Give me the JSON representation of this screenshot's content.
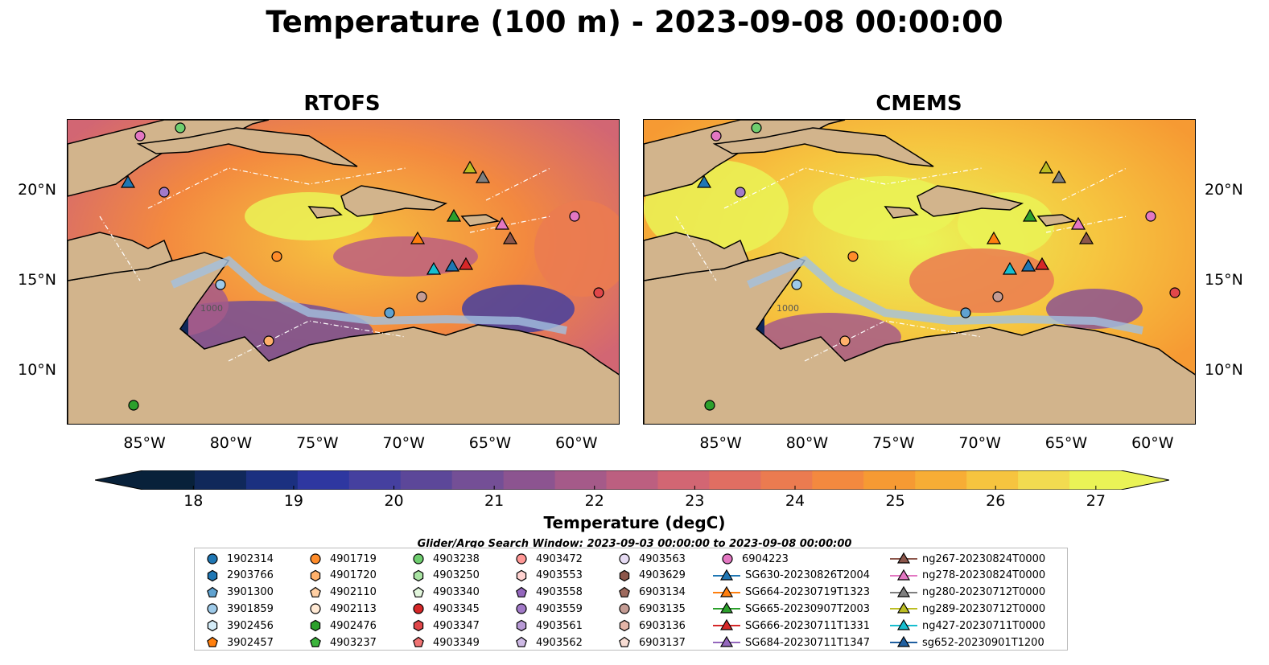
{
  "title": "Temperature (100 m) - 2023-09-08 00:00:00",
  "chart_data": [
    {
      "type": "heatmap",
      "title": "RTOFS",
      "xlim": [
        -89.5,
        -57.5
      ],
      "ylim": [
        7,
        24
      ],
      "xticks": [
        "85°W",
        "80°W",
        "75°W",
        "70°W",
        "65°W",
        "60°W"
      ],
      "yticks": [
        "10°N",
        "15°N",
        "20°N"
      ],
      "xtick_values": [
        -85,
        -80,
        -75,
        -70,
        -65,
        -60
      ],
      "ytick_values": [
        10,
        15,
        20
      ],
      "contour_labels": [
        "1000"
      ],
      "grid": false
    },
    {
      "type": "heatmap",
      "title": "CMEMS",
      "xlim": [
        -89.5,
        -57.5
      ],
      "ylim": [
        7,
        24
      ],
      "xticks": [
        "85°W",
        "80°W",
        "75°W",
        "70°W",
        "65°W",
        "60°W"
      ],
      "yticks": [
        "10°N",
        "15°N",
        "20°N"
      ],
      "xtick_values": [
        -85,
        -80,
        -75,
        -70,
        -65,
        -60
      ],
      "ytick_values": [
        10,
        15,
        20
      ],
      "contour_labels": [
        "1000"
      ],
      "grid": false
    }
  ],
  "colorbar": {
    "label": "Temperature (degC)",
    "min": 17.5,
    "max": 27.25,
    "ticks": [
      "18",
      "19",
      "20",
      "21",
      "22",
      "23",
      "24",
      "25",
      "26",
      "27"
    ],
    "tick_values": [
      18,
      19,
      20,
      21,
      22,
      23,
      24,
      25,
      26,
      27
    ],
    "colors": [
      "#08213a",
      "#10285a",
      "#1b3080",
      "#2e37a0",
      "#45409f",
      "#5c4799",
      "#744f96",
      "#8c5490",
      "#a55a89",
      "#bc5f80",
      "#d26673",
      "#e06e62",
      "#eb7b50",
      "#f3893f",
      "#f69a33",
      "#f7ad35",
      "#f6c43f",
      "#f2db50",
      "#eaf356"
    ]
  },
  "search_window": "Glider/Argo Search Window: 2023-09-03 00:00:00 to 2023-09-08 00:00:00",
  "legend": [
    {
      "label": "1902314",
      "marker": "circle",
      "color": "#1f77b4"
    },
    {
      "label": "2903766",
      "marker": "hexagon",
      "color": "#1f77b4"
    },
    {
      "label": "3901300",
      "marker": "pentagon",
      "color": "#5fa2d0"
    },
    {
      "label": "3901859",
      "marker": "circle",
      "color": "#9ecae9"
    },
    {
      "label": "3902456",
      "marker": "hexagon",
      "color": "#d4ecf8"
    },
    {
      "label": "3902457",
      "marker": "pentagon",
      "color": "#ff7f0e"
    },
    {
      "label": "4901719",
      "marker": "circle",
      "color": "#ff8c2a"
    },
    {
      "label": "4901720",
      "marker": "hexagon",
      "color": "#ffb16b"
    },
    {
      "label": "4902110",
      "marker": "pentagon",
      "color": "#ffcfa3"
    },
    {
      "label": "4902113",
      "marker": "circle",
      "color": "#ffe9d4"
    },
    {
      "label": "4902476",
      "marker": "hexagon",
      "color": "#2ca02c"
    },
    {
      "label": "4903237",
      "marker": "pentagon",
      "color": "#3cb43c"
    },
    {
      "label": "4903238",
      "marker": "circle",
      "color": "#6fce6f"
    },
    {
      "label": "4903250",
      "marker": "hexagon",
      "color": "#a9e3a3"
    },
    {
      "label": "4903340",
      "marker": "pentagon",
      "color": "#e2f6dc"
    },
    {
      "label": "4903345",
      "marker": "circle",
      "color": "#d62728"
    },
    {
      "label": "4903347",
      "marker": "hexagon",
      "color": "#e0474a"
    },
    {
      "label": "4903349",
      "marker": "pentagon",
      "color": "#f07373"
    },
    {
      "label": "4903472",
      "marker": "circle",
      "color": "#ff9896"
    },
    {
      "label": "4903553",
      "marker": "hexagon",
      "color": "#ffd2d0"
    },
    {
      "label": "4903558",
      "marker": "pentagon",
      "color": "#9467bd"
    },
    {
      "label": "4903559",
      "marker": "circle",
      "color": "#a27ac8"
    },
    {
      "label": "4903561",
      "marker": "hexagon",
      "color": "#b89ad6"
    },
    {
      "label": "4903562",
      "marker": "pentagon",
      "color": "#cdb9e4"
    },
    {
      "label": "4903563",
      "marker": "circle",
      "color": "#e6dbf3"
    },
    {
      "label": "4903629",
      "marker": "hexagon",
      "color": "#8c564b"
    },
    {
      "label": "6903134",
      "marker": "pentagon",
      "color": "#9e6a5e"
    },
    {
      "label": "6903135",
      "marker": "circle",
      "color": "#c49c94"
    },
    {
      "label": "6903136",
      "marker": "hexagon",
      "color": "#e3b5a8"
    },
    {
      "label": "6903137",
      "marker": "pentagon",
      "color": "#f7dcd3"
    },
    {
      "label": "6904223",
      "marker": "circle",
      "color": "#e377c2"
    },
    {
      "label": "SG630-20230826T2004",
      "marker": "triangle",
      "color": "#1f77b4",
      "line": true
    },
    {
      "label": "SG664-20230719T1323",
      "marker": "triangle",
      "color": "#ff7f0e",
      "line": true
    },
    {
      "label": "SG665-20230907T2003",
      "marker": "triangle",
      "color": "#2ca02c",
      "line": true
    },
    {
      "label": "SG666-20230711T1331",
      "marker": "triangle",
      "color": "#d62728",
      "line": true
    },
    {
      "label": "SG684-20230711T1347",
      "marker": "triangle",
      "color": "#9467bd",
      "line": true
    },
    {
      "label": "ng267-20230824T0000",
      "marker": "triangle",
      "color": "#8c564b",
      "line": true
    },
    {
      "label": "ng278-20230824T0000",
      "marker": "triangle",
      "color": "#e377c2",
      "line": true
    },
    {
      "label": "ng280-20230712T0000",
      "marker": "triangle",
      "color": "#7f7f7f",
      "line": true
    },
    {
      "label": "ng289-20230712T0000",
      "marker": "triangle",
      "color": "#bcbd22",
      "line": true
    },
    {
      "label": "ng427-20230711T0000",
      "marker": "triangle",
      "color": "#17becf",
      "line": true
    },
    {
      "label": "sg652-20230901T1200",
      "marker": "triangle",
      "color": "#1f5fa0",
      "line": true
    }
  ]
}
